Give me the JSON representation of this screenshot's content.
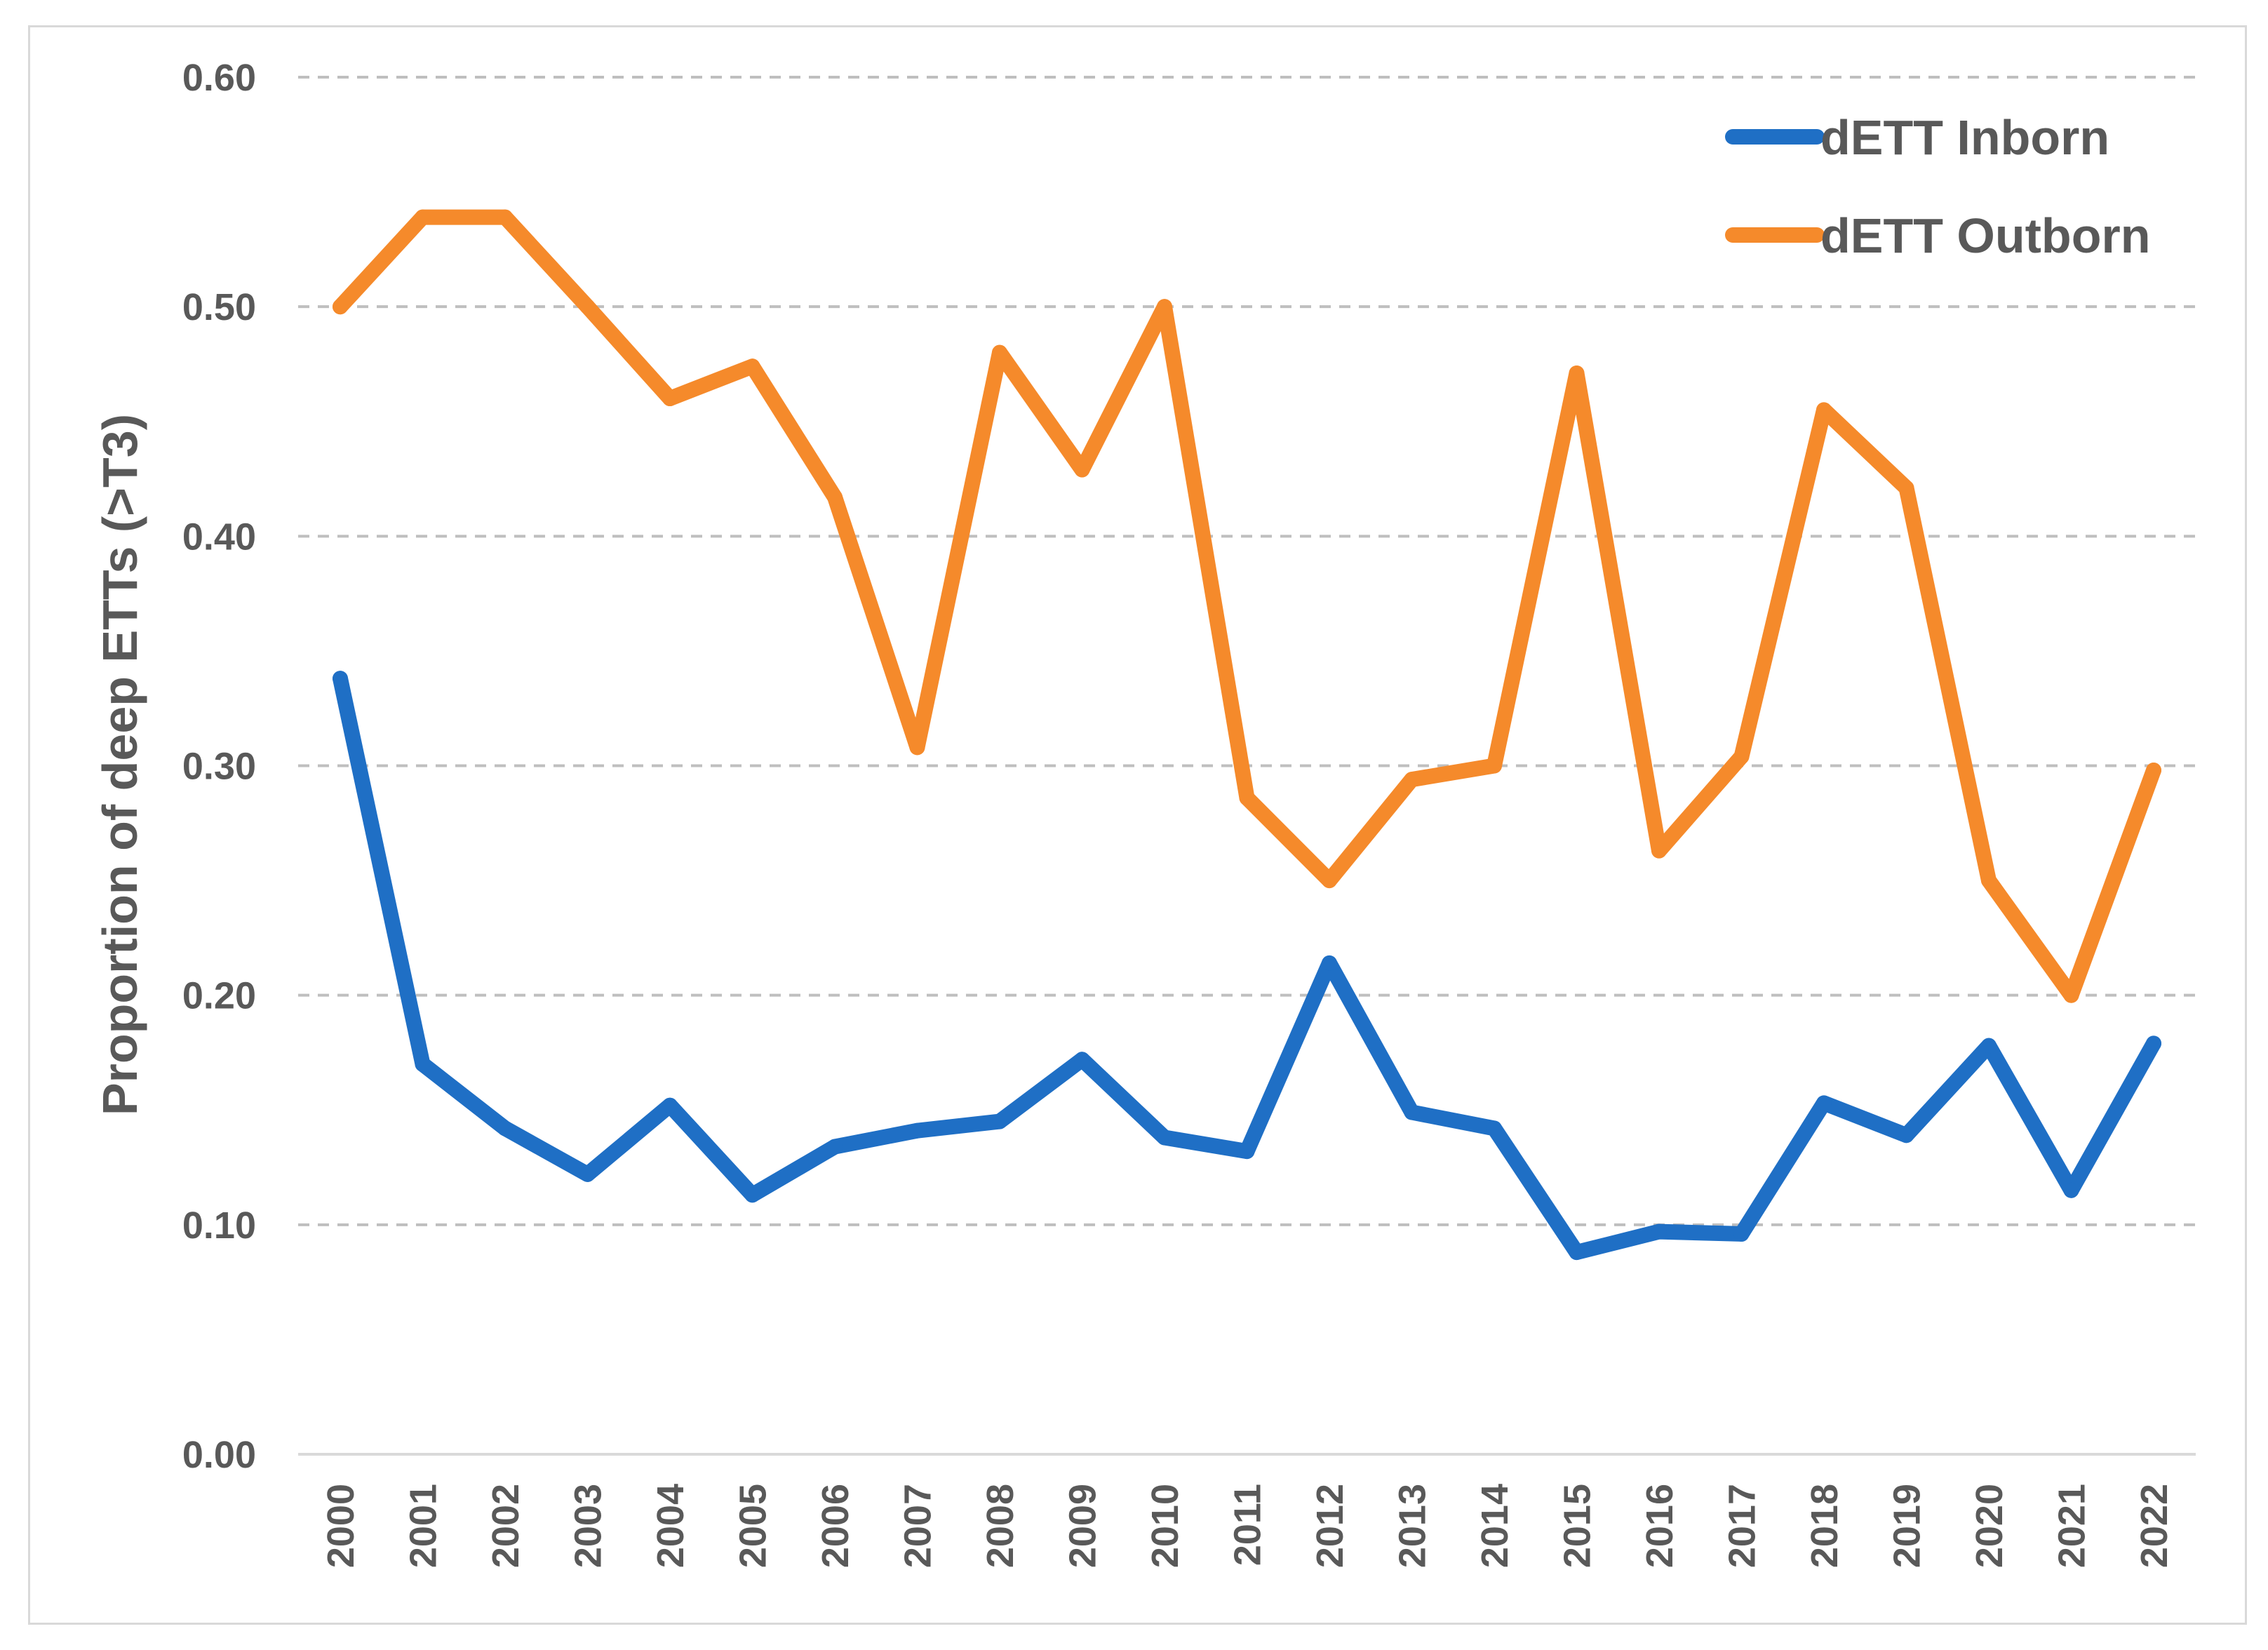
{
  "chart_data": {
    "type": "line",
    "title": "",
    "xlabel": "",
    "ylabel": "Proportion of deep ETTs (>T3)",
    "ylim": [
      0,
      0.6
    ],
    "yticks": [
      "0.00",
      "0.10",
      "0.20",
      "0.30",
      "0.40",
      "0.50",
      "0.60"
    ],
    "ytick_values": [
      0,
      0.1,
      0.2,
      0.3,
      0.4,
      0.5,
      0.6
    ],
    "grid": true,
    "legend_position": "top-right",
    "categories": [
      "2000",
      "2001",
      "2002",
      "2003",
      "2004",
      "2005",
      "2006",
      "2007",
      "2008",
      "2009",
      "2010",
      "2011",
      "2012",
      "2013",
      "2014",
      "2015",
      "2016",
      "2017",
      "2018",
      "2019",
      "2020",
      "2021",
      "2022"
    ],
    "series": [
      {
        "name": "dETT Inborn",
        "color": "#1f6fc5",
        "values": [
          0.338,
          0.17,
          0.142,
          0.122,
          0.152,
          0.113,
          0.134,
          0.141,
          0.145,
          0.172,
          0.138,
          0.132,
          0.214,
          0.149,
          0.142,
          0.088,
          0.097,
          0.096,
          0.153,
          0.139,
          0.178,
          0.115,
          0.179
        ]
      },
      {
        "name": "dETT Outborn",
        "color": "#f58a2b",
        "values": [
          0.5,
          0.539,
          0.539,
          0.5,
          0.46,
          0.474,
          0.417,
          0.308,
          0.48,
          0.429,
          0.5,
          0.286,
          0.25,
          0.294,
          0.3,
          0.471,
          0.263,
          0.304,
          0.455,
          0.421,
          0.25,
          0.2,
          0.298
        ]
      }
    ]
  }
}
